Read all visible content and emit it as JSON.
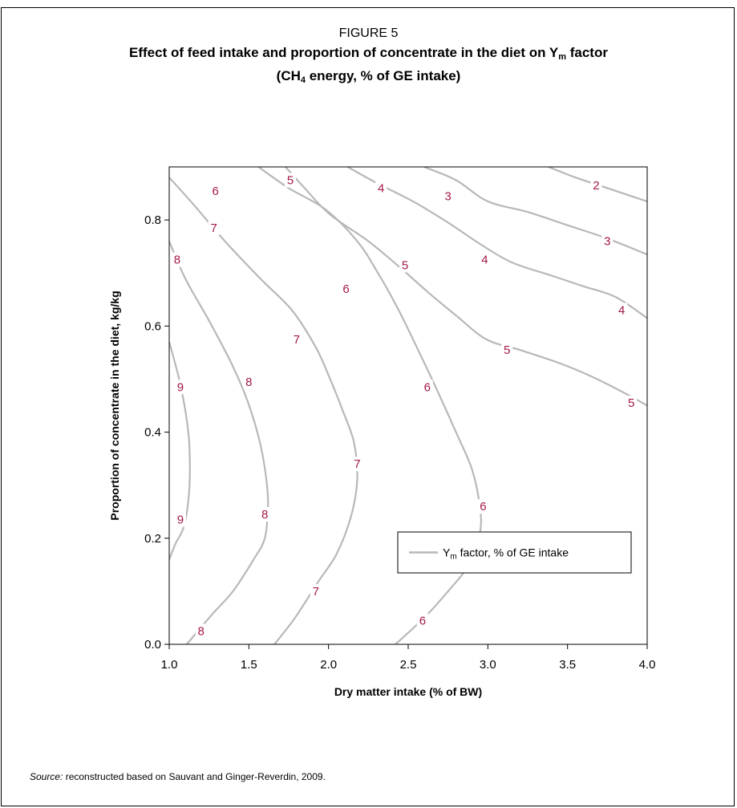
{
  "figure": {
    "label": "FIGURE 5",
    "title_main": "Effect of feed intake and proportion of concentrate in the diet on Y",
    "title_sub": "m",
    "title_suffix": " factor",
    "title_line2_pre": "(CH",
    "title_line2_sub": "4",
    "title_line2_post": " energy, % of GE intake)"
  },
  "source": {
    "label": "Source:",
    "text": " reconstructed based on Sauvant and Ginger-Reverdin, 2009."
  },
  "chart_data": {
    "type": "contour",
    "xlabel": "Dry matter intake (% of BW)",
    "ylabel": "Proportion of concentrate in the diet, kg/kg",
    "xlim": [
      1.0,
      4.0
    ],
    "ylim": [
      0.0,
      0.9
    ],
    "xticks": [
      "1.0",
      "1.5",
      "2.0",
      "2.5",
      "3.0",
      "3.5",
      "4.0"
    ],
    "yticks": [
      "0.0",
      "0.2",
      "0.4",
      "0.6",
      "0.8"
    ],
    "grid": false,
    "legend": {
      "position": "inside-lower-right",
      "label_pre": "Y",
      "label_sub": "m",
      "label_post": " factor, % of GE intake"
    },
    "line_color": "#b8b8b8",
    "label_color": "#a3184a",
    "contours": [
      {
        "level": 9,
        "points": [
          [
            1.0,
            0.57
          ],
          [
            1.07,
            0.49
          ],
          [
            1.12,
            0.4
          ],
          [
            1.13,
            0.33
          ],
          [
            1.12,
            0.27
          ],
          [
            1.09,
            0.22
          ],
          [
            1.04,
            0.19
          ],
          [
            1.0,
            0.16
          ]
        ]
      },
      {
        "level": 8,
        "points": [
          [
            1.0,
            0.76
          ],
          [
            1.1,
            0.69
          ],
          [
            1.25,
            0.61
          ],
          [
            1.39,
            0.53
          ],
          [
            1.49,
            0.46
          ],
          [
            1.57,
            0.38
          ],
          [
            1.61,
            0.31
          ],
          [
            1.62,
            0.26
          ],
          [
            1.6,
            0.2
          ],
          [
            1.53,
            0.16
          ],
          [
            1.4,
            0.1
          ],
          [
            1.28,
            0.06
          ],
          [
            1.18,
            0.025
          ],
          [
            1.11,
            0.0
          ]
        ]
      },
      {
        "level": 7,
        "points": [
          [
            1.0,
            0.88
          ],
          [
            1.15,
            0.83
          ],
          [
            1.35,
            0.76
          ],
          [
            1.57,
            0.69
          ],
          [
            1.77,
            0.63
          ],
          [
            1.92,
            0.56
          ],
          [
            2.01,
            0.5
          ],
          [
            2.09,
            0.44
          ],
          [
            2.16,
            0.38
          ],
          [
            2.18,
            0.31
          ],
          [
            2.14,
            0.24
          ],
          [
            2.05,
            0.17
          ],
          [
            1.94,
            0.12
          ],
          [
            1.79,
            0.05
          ],
          [
            1.66,
            0.0
          ]
        ]
      },
      {
        "level": 6,
        "points": [
          [
            1.56,
            0.9
          ],
          [
            1.75,
            0.86
          ],
          [
            1.98,
            0.82
          ],
          [
            2.18,
            0.76
          ],
          [
            2.31,
            0.7
          ],
          [
            2.44,
            0.63
          ],
          [
            2.57,
            0.55
          ],
          [
            2.68,
            0.48
          ],
          [
            2.8,
            0.4
          ],
          [
            2.9,
            0.33
          ],
          [
            2.95,
            0.26
          ],
          [
            2.95,
            0.21
          ],
          [
            2.88,
            0.15
          ],
          [
            2.75,
            0.1
          ],
          [
            2.6,
            0.05
          ],
          [
            2.42,
            0.0
          ]
        ]
      },
      {
        "level": 5,
        "points": [
          [
            1.73,
            0.9
          ],
          [
            1.85,
            0.86
          ],
          [
            2.01,
            0.81
          ],
          [
            2.25,
            0.76
          ],
          [
            2.45,
            0.71
          ],
          [
            2.62,
            0.665
          ],
          [
            2.8,
            0.62
          ],
          [
            2.99,
            0.575
          ],
          [
            3.2,
            0.555
          ],
          [
            3.45,
            0.53
          ],
          [
            3.65,
            0.505
          ],
          [
            3.85,
            0.475
          ],
          [
            4.0,
            0.45
          ]
        ]
      },
      {
        "level": 4,
        "points": [
          [
            2.12,
            0.9
          ],
          [
            2.3,
            0.87
          ],
          [
            2.53,
            0.835
          ],
          [
            2.75,
            0.795
          ],
          [
            2.95,
            0.755
          ],
          [
            3.15,
            0.72
          ],
          [
            3.4,
            0.695
          ],
          [
            3.6,
            0.675
          ],
          [
            3.8,
            0.655
          ],
          [
            4.0,
            0.615
          ]
        ]
      },
      {
        "level": 3,
        "points": [
          [
            2.6,
            0.9
          ],
          [
            2.8,
            0.875
          ],
          [
            3.0,
            0.835
          ],
          [
            3.25,
            0.815
          ],
          [
            3.5,
            0.79
          ],
          [
            3.75,
            0.765
          ],
          [
            4.0,
            0.735
          ]
        ]
      },
      {
        "level": 2,
        "points": [
          [
            3.38,
            0.9
          ],
          [
            3.55,
            0.88
          ],
          [
            3.7,
            0.865
          ],
          [
            3.85,
            0.85
          ],
          [
            4.0,
            0.835
          ]
        ]
      }
    ],
    "contour_labels": [
      {
        "text": "9",
        "x": 1.07,
        "y": 0.485
      },
      {
        "text": "9",
        "x": 1.07,
        "y": 0.235
      },
      {
        "text": "8",
        "x": 1.05,
        "y": 0.725
      },
      {
        "text": "8",
        "x": 1.5,
        "y": 0.495
      },
      {
        "text": "8",
        "x": 1.6,
        "y": 0.245
      },
      {
        "text": "8",
        "x": 1.2,
        "y": 0.025
      },
      {
        "text": "7",
        "x": 1.28,
        "y": 0.785
      },
      {
        "text": "7",
        "x": 1.8,
        "y": 0.575
      },
      {
        "text": "7",
        "x": 2.18,
        "y": 0.34
      },
      {
        "text": "7",
        "x": 1.92,
        "y": 0.1
      },
      {
        "text": "6",
        "x": 1.29,
        "y": 0.855
      },
      {
        "text": "6",
        "x": 2.11,
        "y": 0.67
      },
      {
        "text": "6",
        "x": 2.62,
        "y": 0.485
      },
      {
        "text": "6",
        "x": 2.97,
        "y": 0.26
      },
      {
        "text": "6",
        "x": 2.59,
        "y": 0.045
      },
      {
        "text": "5",
        "x": 1.76,
        "y": 0.875
      },
      {
        "text": "5",
        "x": 2.48,
        "y": 0.715
      },
      {
        "text": "5",
        "x": 3.12,
        "y": 0.555
      },
      {
        "text": "5",
        "x": 3.9,
        "y": 0.455
      },
      {
        "text": "4",
        "x": 2.33,
        "y": 0.86
      },
      {
        "text": "4",
        "x": 2.98,
        "y": 0.725
      },
      {
        "text": "4",
        "x": 3.84,
        "y": 0.63
      },
      {
        "text": "3",
        "x": 2.75,
        "y": 0.845
      },
      {
        "text": "3",
        "x": 3.75,
        "y": 0.76
      },
      {
        "text": "2",
        "x": 3.68,
        "y": 0.865
      }
    ]
  }
}
